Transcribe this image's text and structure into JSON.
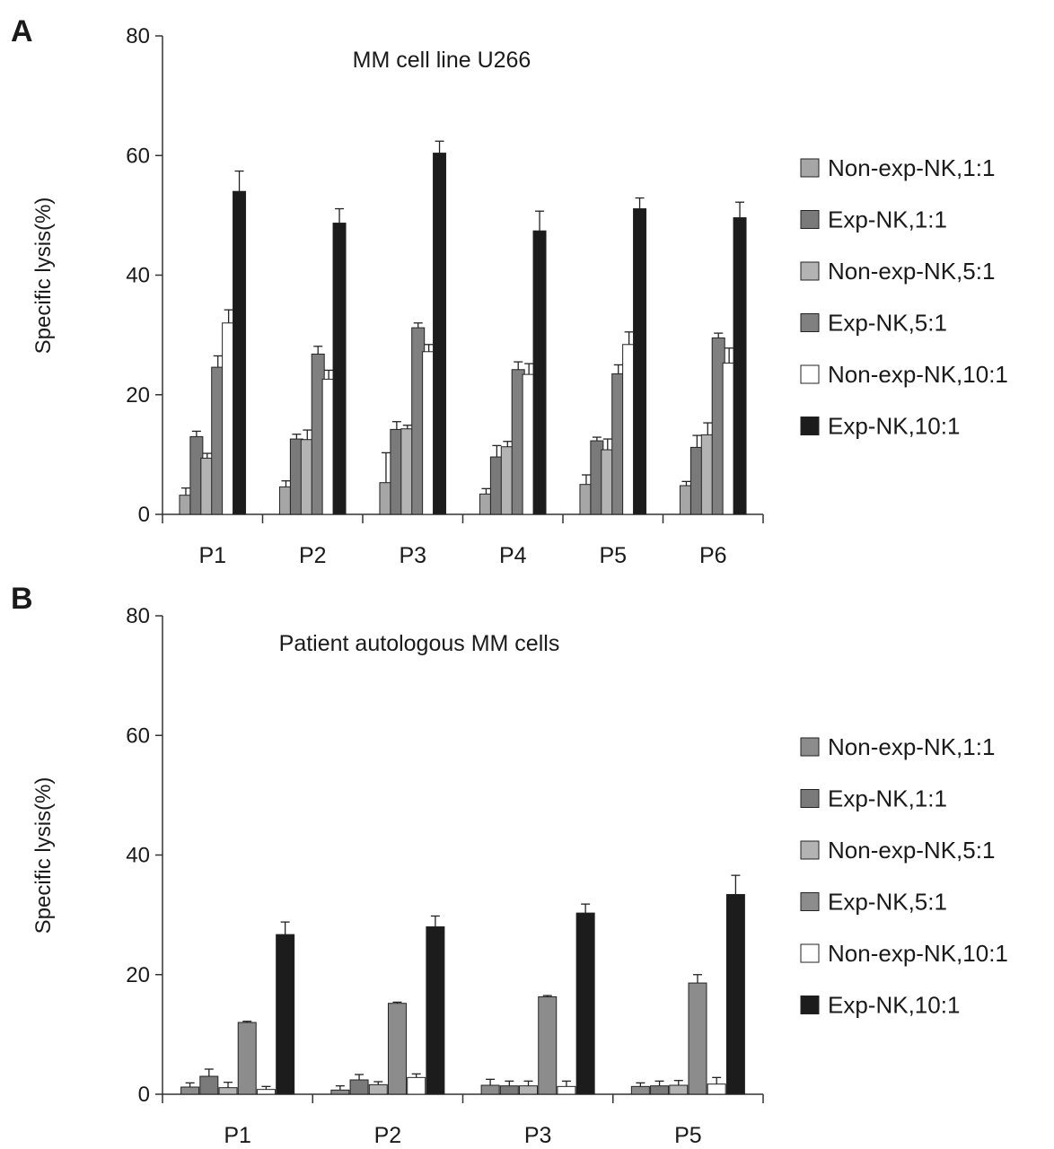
{
  "chart_data": [
    {
      "type": "bar",
      "panel_letter": "A",
      "title": "MM cell line U266",
      "ylabel": "Specific lysis(%)",
      "xlabel": "",
      "ylim": [
        0,
        80
      ],
      "yticks": [
        0,
        20,
        40,
        60,
        80
      ],
      "grid": false,
      "legend_position": "right",
      "categories": [
        "P1",
        "P2",
        "P3",
        "P4",
        "P5",
        "P6"
      ],
      "series": [
        {
          "name": "Non-exp-NK,1:1",
          "color": "#a6a6a6",
          "values": [
            3.2,
            4.6,
            5.3,
            3.4,
            5.0,
            4.8
          ],
          "errors": [
            1.2,
            1.0,
            5.0,
            0.9,
            1.6,
            0.7
          ]
        },
        {
          "name": "Exp-NK,1:1",
          "color": "#7a7a7a",
          "values": [
            13.0,
            12.6,
            14.2,
            9.6,
            12.3,
            11.2
          ],
          "errors": [
            0.9,
            0.8,
            1.3,
            1.9,
            0.6,
            2.0
          ]
        },
        {
          "name": "Non-exp-NK,5:1",
          "color": "#b3b3b3",
          "values": [
            9.4,
            12.5,
            14.3,
            11.3,
            10.8,
            13.3
          ],
          "errors": [
            0.8,
            1.6,
            0.6,
            0.9,
            1.8,
            2.0
          ]
        },
        {
          "name": "Exp-NK,5:1",
          "color": "#808080",
          "values": [
            24.6,
            26.8,
            31.2,
            24.2,
            23.5,
            29.5
          ],
          "errors": [
            1.9,
            1.3,
            0.8,
            1.3,
            1.5,
            0.8
          ]
        },
        {
          "name": "Non-exp-NK,10:1",
          "color": "#ffffff",
          "values": [
            32.0,
            22.6,
            27.2,
            23.4,
            28.4,
            25.3
          ],
          "errors": [
            2.2,
            1.5,
            1.2,
            1.8,
            2.1,
            2.5
          ]
        },
        {
          "name": "Exp-NK,10:1",
          "color": "#1c1c1c",
          "values": [
            54.0,
            48.7,
            60.4,
            47.4,
            51.1,
            49.6
          ],
          "errors": [
            3.4,
            2.4,
            2.0,
            3.3,
            1.8,
            2.6
          ]
        }
      ]
    },
    {
      "type": "bar",
      "panel_letter": "B",
      "title": "Patient autologous MM cells",
      "ylabel": "Specific lysis(%)",
      "xlabel": "",
      "ylim": [
        0,
        80
      ],
      "yticks": [
        0,
        20,
        40,
        60,
        80
      ],
      "grid": false,
      "legend_position": "right",
      "categories": [
        "P1",
        "P2",
        "P3",
        "P5"
      ],
      "series": [
        {
          "name": "Non-exp-NK,1:1",
          "color": "#8c8c8c",
          "values": [
            1.2,
            0.7,
            1.5,
            1.3
          ],
          "errors": [
            0.7,
            0.7,
            1.0,
            0.6
          ]
        },
        {
          "name": "Exp-NK,1:1",
          "color": "#7a7a7a",
          "values": [
            3.0,
            2.4,
            1.4,
            1.4
          ],
          "errors": [
            1.2,
            0.9,
            0.8,
            0.8
          ]
        },
        {
          "name": "Non-exp-NK,5:1",
          "color": "#b3b3b3",
          "values": [
            1.1,
            1.6,
            1.4,
            1.5
          ],
          "errors": [
            0.9,
            0.5,
            0.8,
            0.8
          ]
        },
        {
          "name": "Exp-NK,5:1",
          "color": "#8c8c8c",
          "values": [
            12.0,
            15.2,
            16.3,
            18.6
          ],
          "errors": [
            0.2,
            0.2,
            0.2,
            1.4
          ]
        },
        {
          "name": "Non-exp-NK,10:1",
          "color": "#ffffff",
          "values": [
            0.8,
            2.8,
            1.3,
            1.7
          ],
          "errors": [
            0.5,
            0.6,
            0.9,
            1.1
          ]
        },
        {
          "name": "Exp-NK,10:1",
          "color": "#1c1c1c",
          "values": [
            26.7,
            28.0,
            30.3,
            33.4
          ],
          "errors": [
            2.1,
            1.8,
            1.5,
            3.2
          ]
        }
      ]
    }
  ]
}
